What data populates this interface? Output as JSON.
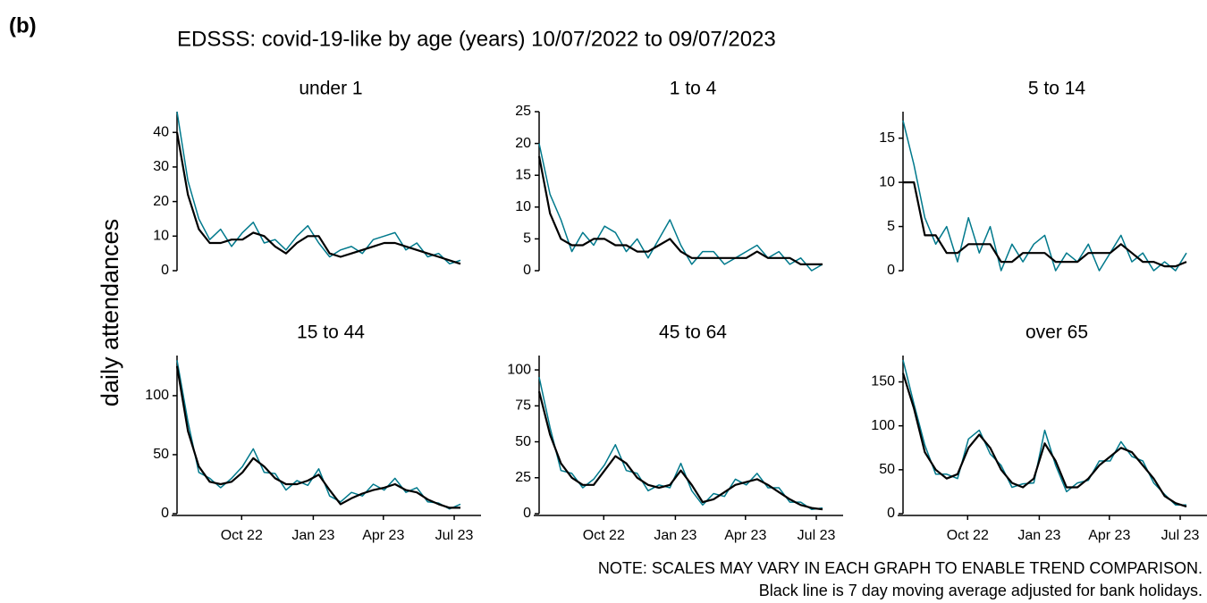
{
  "label": "(b)",
  "title": "EDSSS: covid-19-like by age (years) 10/07/2022 to 09/07/2023",
  "ylabel": "daily attendances",
  "notes": [
    "NOTE: SCALES MAY VARY IN EACH GRAPH TO ENABLE TREND COMPARISON.",
    "Black line is 7 day moving average adjusted for bank holidays."
  ],
  "chart_data": [
    {
      "type": "line",
      "title": "under 1",
      "xlim": [
        "2022-07-10",
        "2023-07-09"
      ],
      "ylim": [
        0,
        46
      ],
      "yticks": [
        0,
        10,
        20,
        30,
        40
      ],
      "show_xaxis": false,
      "xticks": [
        {
          "value": "2022-10-01",
          "label": "Oct 22"
        },
        {
          "value": "2023-01-01",
          "label": "Jan 23"
        },
        {
          "value": "2023-04-01",
          "label": "Apr 23"
        },
        {
          "value": "2023-07-01",
          "label": "Jul 23"
        }
      ],
      "series": [
        {
          "color": "#00798c",
          "values": [
            46,
            26,
            15,
            9,
            12,
            7,
            11,
            14,
            8,
            9,
            6,
            10,
            13,
            8,
            4,
            6,
            7,
            5,
            9,
            10,
            11,
            6,
            8,
            4,
            5,
            2,
            3
          ]
        },
        {
          "color": "#000000",
          "values": [
            40,
            22,
            12,
            8,
            8,
            9,
            9,
            11,
            10,
            7,
            5,
            8,
            10,
            10,
            5,
            4,
            5,
            6,
            7,
            8,
            8,
            7,
            6,
            5,
            4,
            3,
            2
          ]
        }
      ]
    },
    {
      "type": "line",
      "title": "1 to 4",
      "xlim": [
        "2022-07-10",
        "2023-07-09"
      ],
      "ylim": [
        0,
        25
      ],
      "yticks": [
        0,
        5,
        10,
        15,
        20,
        25
      ],
      "show_xaxis": false,
      "xticks": [
        {
          "value": "2022-10-01",
          "label": "Oct 22"
        },
        {
          "value": "2023-01-01",
          "label": "Jan 23"
        },
        {
          "value": "2023-04-01",
          "label": "Apr 23"
        },
        {
          "value": "2023-07-01",
          "label": "Jul 23"
        }
      ],
      "series": [
        {
          "color": "#00798c",
          "values": [
            20,
            12,
            8,
            3,
            6,
            4,
            7,
            6,
            3,
            5,
            2,
            5,
            8,
            4,
            1,
            3,
            3,
            1,
            2,
            3,
            4,
            2,
            3,
            1,
            2,
            0,
            1
          ]
        },
        {
          "color": "#000000",
          "values": [
            18,
            9,
            5,
            4,
            4,
            5,
            5,
            4,
            4,
            3,
            3,
            4,
            5,
            3,
            2,
            2,
            2,
            2,
            2,
            2,
            3,
            2,
            2,
            2,
            1,
            1,
            1
          ]
        }
      ]
    },
    {
      "type": "line",
      "title": "5 to 14",
      "xlim": [
        "2022-07-10",
        "2023-07-09"
      ],
      "ylim": [
        0,
        18
      ],
      "yticks": [
        0,
        5,
        10,
        15
      ],
      "show_xaxis": false,
      "xticks": [
        {
          "value": "2022-10-01",
          "label": "Oct 22"
        },
        {
          "value": "2023-01-01",
          "label": "Jan 23"
        },
        {
          "value": "2023-04-01",
          "label": "Apr 23"
        },
        {
          "value": "2023-07-01",
          "label": "Jul 23"
        }
      ],
      "series": [
        {
          "color": "#00798c",
          "values": [
            17,
            12,
            6,
            3,
            5,
            1,
            6,
            2,
            5,
            0,
            3,
            1,
            3,
            4,
            0,
            2,
            1,
            3,
            0,
            2,
            4,
            1,
            2,
            0,
            1,
            0,
            2
          ]
        },
        {
          "color": "#000000",
          "values": [
            10,
            10,
            4,
            4,
            2,
            2,
            3,
            3,
            3,
            1,
            1,
            2,
            2,
            2,
            1,
            1,
            1,
            2,
            2,
            2,
            3,
            2,
            1,
            1,
            0.5,
            0.5,
            1
          ]
        }
      ]
    },
    {
      "type": "line",
      "title": "15 to 44",
      "xlim": [
        "2022-07-10",
        "2023-07-09"
      ],
      "ylim": [
        0,
        134
      ],
      "yticks": [
        0,
        50,
        100
      ],
      "show_xaxis": true,
      "xticks": [
        {
          "value": "2022-10-01",
          "label": "Oct 22"
        },
        {
          "value": "2023-01-01",
          "label": "Jan 23"
        },
        {
          "value": "2023-04-01",
          "label": "Apr 23"
        },
        {
          "value": "2023-07-01",
          "label": "Jul 23"
        }
      ],
      "series": [
        {
          "color": "#00798c",
          "values": [
            130,
            78,
            35,
            30,
            22,
            30,
            40,
            55,
            35,
            34,
            20,
            28,
            24,
            38,
            15,
            10,
            18,
            15,
            25,
            20,
            30,
            18,
            22,
            10,
            9,
            4,
            8
          ]
        },
        {
          "color": "#000000",
          "values": [
            125,
            70,
            40,
            27,
            25,
            27,
            35,
            47,
            40,
            30,
            25,
            25,
            28,
            33,
            20,
            8,
            13,
            17,
            20,
            22,
            25,
            20,
            18,
            12,
            8,
            5,
            5
          ]
        }
      ]
    },
    {
      "type": "line",
      "title": "45 to 64",
      "xlim": [
        "2022-07-10",
        "2023-07-09"
      ],
      "ylim": [
        0,
        110
      ],
      "yticks": [
        0,
        25,
        50,
        75,
        100
      ],
      "show_xaxis": true,
      "xticks": [
        {
          "value": "2022-10-01",
          "label": "Oct 22"
        },
        {
          "value": "2023-01-01",
          "label": "Jan 23"
        },
        {
          "value": "2023-04-01",
          "label": "Apr 23"
        },
        {
          "value": "2023-07-01",
          "label": "Jul 23"
        }
      ],
      "series": [
        {
          "color": "#00798c",
          "values": [
            95,
            60,
            30,
            28,
            18,
            24,
            34,
            48,
            30,
            28,
            16,
            20,
            18,
            35,
            16,
            6,
            14,
            12,
            24,
            20,
            28,
            18,
            18,
            8,
            8,
            3,
            4
          ]
        },
        {
          "color": "#000000",
          "values": [
            85,
            55,
            35,
            25,
            20,
            20,
            30,
            40,
            35,
            25,
            20,
            18,
            20,
            30,
            20,
            8,
            10,
            15,
            20,
            22,
            24,
            20,
            15,
            10,
            6,
            4,
            3
          ]
        }
      ]
    },
    {
      "type": "line",
      "title": "over 65",
      "xlim": [
        "2022-07-10",
        "2023-07-09"
      ],
      "ylim": [
        0,
        180
      ],
      "yticks": [
        0,
        50,
        100,
        150
      ],
      "show_xaxis": true,
      "xticks": [
        {
          "value": "2022-10-01",
          "label": "Oct 22"
        },
        {
          "value": "2023-01-01",
          "label": "Jan 23"
        },
        {
          "value": "2023-04-01",
          "label": "Apr 23"
        },
        {
          "value": "2023-07-01",
          "label": "Jul 23"
        }
      ],
      "series": [
        {
          "color": "#00798c",
          "values": [
            175,
            125,
            78,
            45,
            45,
            40,
            85,
            95,
            68,
            55,
            30,
            34,
            35,
            95,
            55,
            25,
            35,
            38,
            60,
            60,
            82,
            65,
            60,
            35,
            22,
            10,
            10
          ]
        },
        {
          "color": "#000000",
          "values": [
            160,
            120,
            70,
            50,
            40,
            45,
            75,
            90,
            75,
            50,
            35,
            30,
            40,
            80,
            60,
            30,
            30,
            40,
            55,
            65,
            75,
            70,
            55,
            40,
            20,
            12,
            8
          ]
        }
      ]
    }
  ]
}
